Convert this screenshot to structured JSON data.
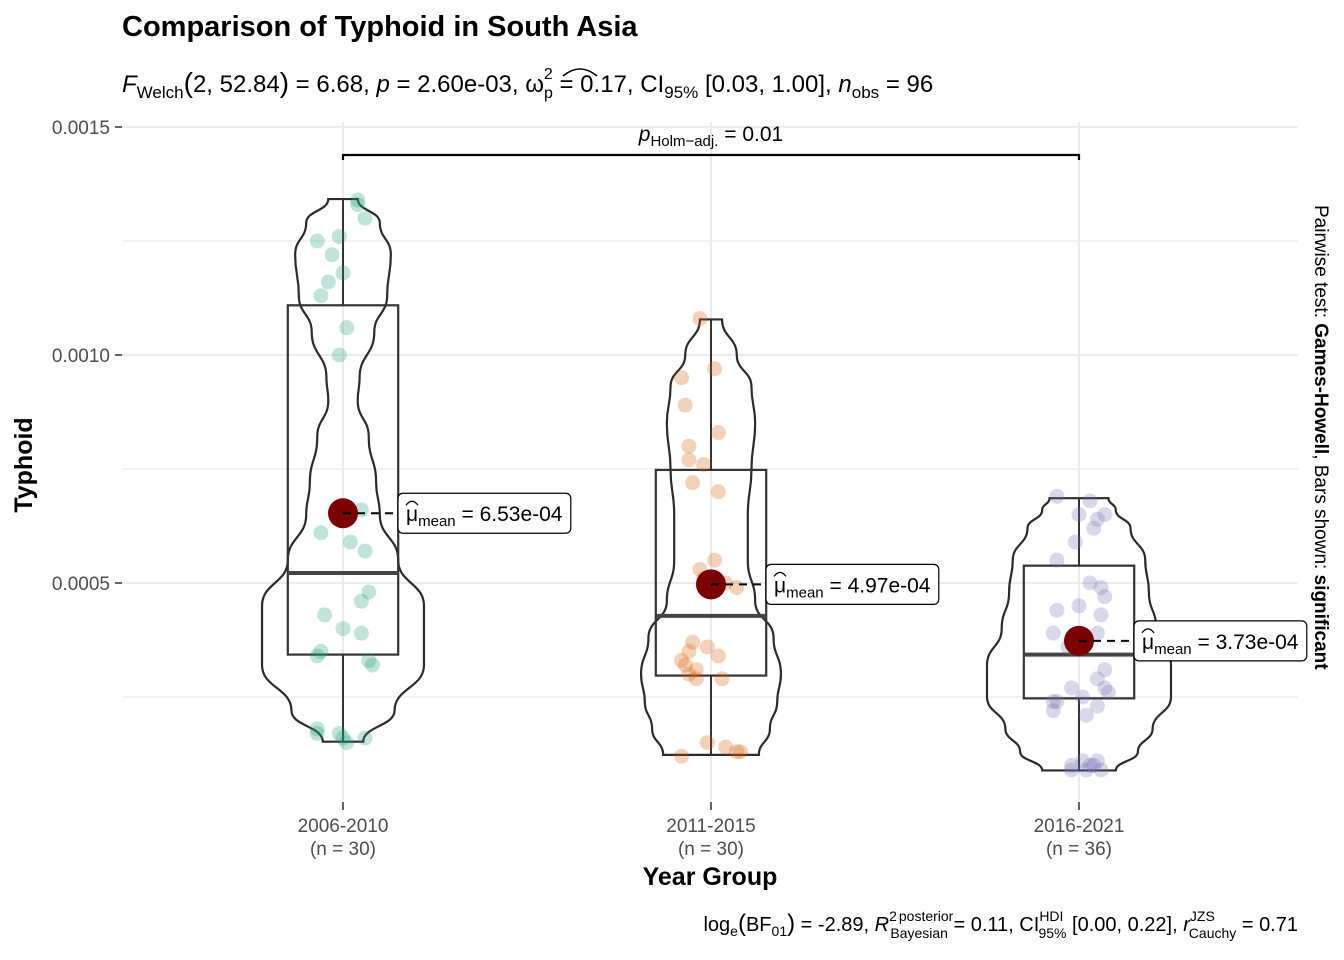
{
  "chart_data": {
    "type": "violin-box-scatter",
    "title": "Comparison of Typhoid in South Asia",
    "subtitle": {
      "F_sub": "Welch",
      "df": "2, 52.84",
      "F": "6.68",
      "p": "2.60e-03",
      "omega_sq": "0.17",
      "ci_level": "95%",
      "ci": "[0.03, 1.00]",
      "n_sub": "obs",
      "n": "96"
    },
    "xlabel": "Year Group",
    "ylabel": "Typhoid",
    "ylim": [
      3e-05,
      0.0015
    ],
    "yticks": [
      {
        "value": 0.0005,
        "label": "0.0005"
      },
      {
        "value": 0.001,
        "label": "0.0010"
      },
      {
        "value": 0.0015,
        "label": "0.0015"
      }
    ],
    "grid": true,
    "groups": [
      {
        "name": "2006-2010",
        "n_label": "(n = 30)",
        "color": "#1B9E77",
        "mean": 0.000653,
        "mean_label": "6.53e-04",
        "box": {
          "q1": 0.000343,
          "median": 0.000522,
          "q3": 0.001109,
          "min": 0.000152,
          "max": 0.001342
        },
        "violin": [
          [
            0.000152,
            0.055
          ],
          [
            0.00022,
            0.14
          ],
          [
            0.00032,
            0.22
          ],
          [
            0.00045,
            0.22
          ],
          [
            0.00055,
            0.15
          ],
          [
            0.00065,
            0.1
          ],
          [
            0.00072,
            0.09
          ],
          [
            0.00082,
            0.07
          ],
          [
            0.0009,
            0.04
          ],
          [
            0.00095,
            0.045
          ],
          [
            0.00105,
            0.085
          ],
          [
            0.00113,
            0.12
          ],
          [
            0.00122,
            0.13
          ],
          [
            0.00129,
            0.1
          ],
          [
            0.001342,
            0.04
          ]
        ],
        "points": [
          [
            0.00134,
            0.04
          ],
          [
            0.00133,
            0.04
          ],
          [
            0.0013,
            0.06
          ],
          [
            0.00126,
            -0.01
          ],
          [
            0.00125,
            -0.07
          ],
          [
            0.00122,
            -0.03
          ],
          [
            0.00118,
            0.0
          ],
          [
            0.00116,
            -0.04
          ],
          [
            0.00113,
            -0.06
          ],
          [
            0.00106,
            0.01
          ],
          [
            0.001,
            -0.01
          ],
          [
            0.00066,
            0.05
          ],
          [
            0.00061,
            -0.06
          ],
          [
            0.00059,
            0.02
          ],
          [
            0.00057,
            0.06
          ],
          [
            0.00048,
            0.07
          ],
          [
            0.00046,
            0.05
          ],
          [
            0.00043,
            -0.05
          ],
          [
            0.0004,
            0.0
          ],
          [
            0.00039,
            0.05
          ],
          [
            0.00035,
            -0.06
          ],
          [
            0.00034,
            -0.07
          ],
          [
            0.00033,
            0.07
          ],
          [
            0.00032,
            0.08
          ],
          [
            0.00018,
            -0.07
          ],
          [
            0.00017,
            -0.07
          ],
          [
            0.00017,
            -0.01
          ],
          [
            0.00016,
            0.0
          ],
          [
            0.00015,
            0.01
          ],
          [
            0.00016,
            0.06
          ]
        ]
      },
      {
        "name": "2011-2015",
        "n_label": "(n = 30)",
        "color": "#D95F02",
        "mean": 0.000497,
        "mean_label": "4.97e-04",
        "box": {
          "q1": 0.000297,
          "median": 0.000428,
          "q3": 0.000748,
          "min": 0.000123,
          "max": 0.001078
        },
        "violin": [
          [
            0.000123,
            0.13
          ],
          [
            0.00018,
            0.16
          ],
          [
            0.00024,
            0.18
          ],
          [
            0.0003,
            0.19
          ],
          [
            0.00038,
            0.17
          ],
          [
            0.00046,
            0.12
          ],
          [
            0.00055,
            0.1
          ],
          [
            0.00065,
            0.1
          ],
          [
            0.00075,
            0.11
          ],
          [
            0.00085,
            0.12
          ],
          [
            0.00093,
            0.11
          ],
          [
            0.001,
            0.07
          ],
          [
            0.001078,
            0.03
          ]
        ],
        "points": [
          [
            0.00108,
            -0.03
          ],
          [
            0.00097,
            0.01
          ],
          [
            0.00095,
            -0.08
          ],
          [
            0.00089,
            -0.07
          ],
          [
            0.00083,
            0.02
          ],
          [
            0.0008,
            -0.06
          ],
          [
            0.00077,
            -0.06
          ],
          [
            0.00076,
            -0.02
          ],
          [
            0.00072,
            -0.05
          ],
          [
            0.0007,
            0.02
          ],
          [
            0.00055,
            0.01
          ],
          [
            0.00053,
            -0.03
          ],
          [
            0.00051,
            -0.02
          ],
          [
            0.0005,
            0.04
          ],
          [
            0.00049,
            0.07
          ],
          [
            0.00037,
            -0.05
          ],
          [
            0.00036,
            -0.01
          ],
          [
            0.00035,
            -0.06
          ],
          [
            0.00034,
            0.02
          ],
          [
            0.00033,
            -0.08
          ],
          [
            0.00032,
            -0.07
          ],
          [
            0.00031,
            -0.04
          ],
          [
            0.0003,
            -0.06
          ],
          [
            0.00029,
            -0.04
          ],
          [
            0.00029,
            0.03
          ],
          [
            0.00015,
            -0.01
          ],
          [
            0.00014,
            0.04
          ],
          [
            0.00013,
            0.07
          ],
          [
            0.00013,
            0.08
          ],
          [
            0.00012,
            -0.08
          ]
        ]
      },
      {
        "name": "2016-2021",
        "n_label": "(n = 36)",
        "color": "#7570B3",
        "mean": 0.000373,
        "mean_label": "3.73e-04",
        "box": {
          "q1": 0.000247,
          "median": 0.000343,
          "q3": 0.000538,
          "min": 8.9e-05,
          "max": 0.000686
        },
        "violin": [
          [
            8.9e-05,
            0.1
          ],
          [
            0.00013,
            0.16
          ],
          [
            0.00018,
            0.2
          ],
          [
            0.00025,
            0.25
          ],
          [
            0.00032,
            0.25
          ],
          [
            0.0004,
            0.21
          ],
          [
            0.00048,
            0.19
          ],
          [
            0.00055,
            0.18
          ],
          [
            0.00062,
            0.14
          ],
          [
            0.00066,
            0.1
          ],
          [
            0.000686,
            0.08
          ]
        ],
        "points": [
          [
            0.00069,
            -0.06
          ],
          [
            0.00068,
            0.03
          ],
          [
            0.00065,
            0.07
          ],
          [
            0.00065,
            0.0
          ],
          [
            0.00064,
            0.05
          ],
          [
            0.00062,
            0.04
          ],
          [
            0.00059,
            -0.01
          ],
          [
            0.00055,
            -0.06
          ],
          [
            0.0005,
            0.03
          ],
          [
            0.00049,
            0.06
          ],
          [
            0.00047,
            0.07
          ],
          [
            0.00045,
            0.0
          ],
          [
            0.00044,
            -0.06
          ],
          [
            0.00043,
            0.06
          ],
          [
            0.00039,
            -0.07
          ],
          [
            0.00039,
            0.05
          ],
          [
            0.00036,
            -0.03
          ],
          [
            0.00031,
            0.07
          ],
          [
            0.00029,
            0.05
          ],
          [
            0.00027,
            0.07
          ],
          [
            0.00027,
            -0.02
          ],
          [
            0.00026,
            0.08
          ],
          [
            0.00025,
            0.01
          ],
          [
            0.00024,
            -0.07
          ],
          [
            0.00024,
            -0.06
          ],
          [
            0.00023,
            0.05
          ],
          [
            0.00022,
            -0.07
          ],
          [
            0.00021,
            0.02
          ],
          [
            0.00011,
            0.01
          ],
          [
            0.00011,
            0.05
          ],
          [
            0.0001,
            -0.02
          ],
          [
            0.0001,
            0.03
          ],
          [
            9e-05,
            0.02
          ],
          [
            9e-05,
            -0.02
          ],
          [
            9e-05,
            0.06
          ],
          [
            0.0001,
            0.04
          ]
        ]
      }
    ],
    "pairwise": {
      "from": 0,
      "to": 2,
      "label_sub": "Holm−adj.",
      "value": "0.01"
    },
    "side_label": {
      "prefix": "Pairwise test: ",
      "test": "Games-Howell",
      "middle": ", Bars shown: ",
      "shown": "significant"
    },
    "footer": {
      "bf": "-2.89",
      "r2": "0.11",
      "ci_level": "95%",
      "ci": "[0.00, 0.22]",
      "r": "0.71"
    }
  }
}
